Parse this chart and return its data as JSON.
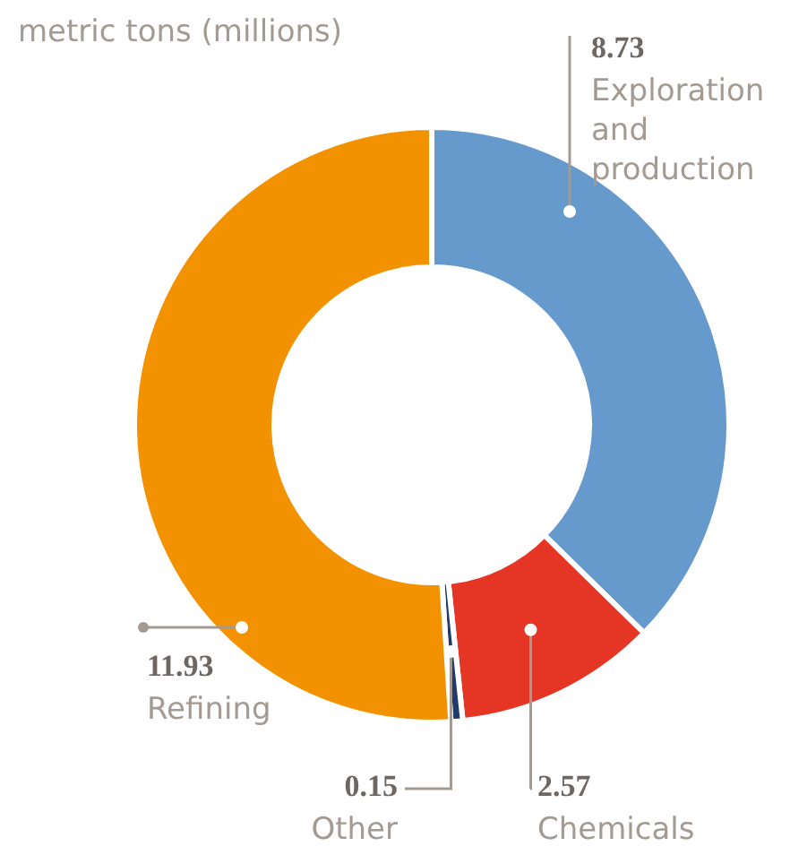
{
  "chart_data": {
    "type": "donut",
    "title": "metric tons (millions)",
    "categories": [
      "Exploration and production",
      "Chemicals",
      "Other",
      "Refining"
    ],
    "values": [
      8.73,
      2.57,
      0.15,
      11.93
    ],
    "colors": [
      "#6699cc",
      "#e53524",
      "#1f3a6b",
      "#f29200"
    ],
    "data_labels": true,
    "legend": false
  }
}
